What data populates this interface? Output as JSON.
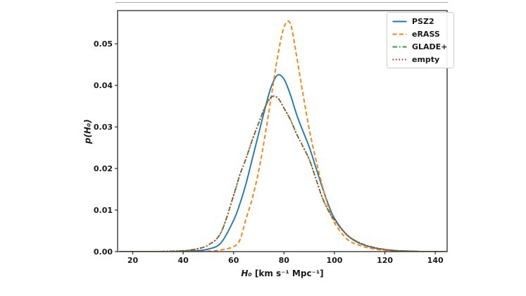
{
  "figure": {
    "background": "#ffffff",
    "top_rule_color": "#ababab"
  },
  "axes": {
    "spine_color": "#2a2a2a",
    "tick_color": "#2a2a2a",
    "xlabel_var": "H₀",
    "xlabel_rest": " [km s⁻¹ Mpc⁻¹]",
    "ylabel": "p(H₀)"
  },
  "chart_data": {
    "type": "line",
    "title": "",
    "xlabel": "H₀ [km s⁻¹ Mpc⁻¹]",
    "ylabel": "p(H₀)",
    "xlim": [
      14,
      144.7
    ],
    "ylim": [
      0,
      0.058
    ],
    "grid": false,
    "legend_position": "upper right",
    "xticks": [
      20,
      40,
      60,
      80,
      100,
      120,
      140
    ],
    "xtick_labels": [
      "20",
      "40",
      "60",
      "80",
      "100",
      "120",
      "140"
    ],
    "yticks": [
      0,
      0.01,
      0.02,
      0.03,
      0.04,
      0.05
    ],
    "ytick_labels": [
      "0.00",
      "0.01",
      "0.02",
      "0.03",
      "0.04",
      "0.05"
    ],
    "x": [
      15,
      20,
      25,
      30,
      35,
      40,
      45,
      50,
      55,
      60,
      62.5,
      65,
      67.5,
      70,
      72.5,
      75,
      77.5,
      80,
      82.5,
      85,
      87.5,
      90,
      92.5,
      95,
      97.5,
      100,
      105,
      110,
      115,
      120,
      125,
      130,
      135,
      140,
      145
    ],
    "series": [
      {
        "name": "PSZ2",
        "color": "#1f77b4",
        "linestyle": "solid",
        "peak": {
          "x": 77.5,
          "y": 0.0425
        },
        "values": [
          0,
          0,
          0,
          0,
          0,
          0.0001,
          0.0002,
          0.0006,
          0.0021,
          0.0075,
          0.0115,
          0.0165,
          0.0225,
          0.0285,
          0.0345,
          0.0398,
          0.0425,
          0.0415,
          0.0378,
          0.033,
          0.029,
          0.0252,
          0.0205,
          0.0158,
          0.0115,
          0.008,
          0.004,
          0.002,
          0.001,
          0.0005,
          0.0002,
          0.0001,
          0,
          0,
          0
        ]
      },
      {
        "name": "eRASS",
        "color": "#ff7f0e",
        "linestyle": "dashed",
        "peak": {
          "x": 81,
          "y": 0.0555
        },
        "values": [
          0,
          0,
          0,
          0,
          0,
          0,
          0,
          0.0001,
          0.0004,
          0.0012,
          0.0028,
          0.008,
          0.013,
          0.0195,
          0.028,
          0.0375,
          0.047,
          0.054,
          0.0549,
          0.047,
          0.038,
          0.0295,
          0.0225,
          0.0163,
          0.011,
          0.007,
          0.003,
          0.0015,
          0.0007,
          0.0003,
          0.0001,
          0,
          0,
          0,
          0
        ]
      },
      {
        "name": "GLADE+",
        "color": "#2ca02c",
        "linestyle": "dashdot",
        "peak": {
          "x": 75,
          "y": 0.0372
        },
        "values": [
          0,
          0,
          0,
          0,
          0.0001,
          0.0002,
          0.0006,
          0.0016,
          0.0046,
          0.0135,
          0.0185,
          0.0225,
          0.027,
          0.031,
          0.0348,
          0.0372,
          0.037,
          0.0345,
          0.0318,
          0.0283,
          0.0253,
          0.0222,
          0.0178,
          0.0133,
          0.01,
          0.0076,
          0.004,
          0.0021,
          0.0011,
          0.0005,
          0.0002,
          0.0001,
          0,
          0,
          0
        ]
      },
      {
        "name": "empty",
        "color": "#d62728",
        "linestyle": "dotted",
        "peak": {
          "x": 75,
          "y": 0.0372
        },
        "values": [
          0,
          0,
          0,
          0,
          0.0001,
          0.0002,
          0.0006,
          0.0016,
          0.0046,
          0.0135,
          0.0185,
          0.0225,
          0.027,
          0.031,
          0.0348,
          0.0372,
          0.037,
          0.0345,
          0.0318,
          0.0283,
          0.0253,
          0.0222,
          0.0178,
          0.0133,
          0.01,
          0.0076,
          0.004,
          0.0021,
          0.0011,
          0.0005,
          0.0002,
          0.0001,
          0,
          0,
          0
        ]
      }
    ]
  }
}
